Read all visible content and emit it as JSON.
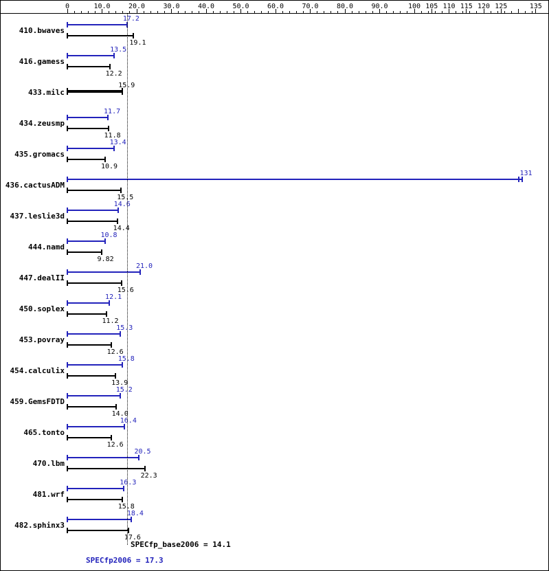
{
  "chart_data": {
    "type": "bar",
    "orientation": "horizontal",
    "colors": {
      "peak": "#2222bb",
      "base": "#000000",
      "reference_line": "#000000"
    },
    "x_axis": {
      "min": 0,
      "max": 135.3,
      "minor_tick_step": 2,
      "unlabeled_major_ticks": [
        130
      ],
      "tick_labels": [
        {
          "value": 0,
          "label": "0"
        },
        {
          "value": 10,
          "label": "10.0"
        },
        {
          "value": 20,
          "label": "20.0"
        },
        {
          "value": 30,
          "label": "30.0"
        },
        {
          "value": 40,
          "label": "40.0"
        },
        {
          "value": 50,
          "label": "50.0"
        },
        {
          "value": 60,
          "label": "60.0"
        },
        {
          "value": 70,
          "label": "70.0"
        },
        {
          "value": 80,
          "label": "80.0"
        },
        {
          "value": 90,
          "label": "90.0"
        },
        {
          "value": 100,
          "label": "100"
        },
        {
          "value": 105,
          "label": "105"
        },
        {
          "value": 110,
          "label": "110"
        },
        {
          "value": 115,
          "label": "115"
        },
        {
          "value": 120,
          "label": "120"
        },
        {
          "value": 125,
          "label": "125"
        },
        {
          "value": 135,
          "label": "135"
        }
      ]
    },
    "series": [
      {
        "name": "peak",
        "color": "#2222bb"
      },
      {
        "name": "base",
        "color": "#000000"
      }
    ],
    "benchmarks": [
      {
        "name": "410.bwaves",
        "peak": 17.2,
        "peak_label": "17.2",
        "base": 19.1,
        "base_label": "19.1"
      },
      {
        "name": "416.gamess",
        "peak": 13.5,
        "peak_label": "13.5",
        "base": 12.2,
        "base_label": "12.2"
      },
      {
        "name": "433.milc",
        "peak": null,
        "base": 15.9,
        "base_label": "15.9"
      },
      {
        "name": "434.zeusmp",
        "peak": 11.7,
        "peak_label": "11.7",
        "base": 11.8,
        "base_label": "11.8"
      },
      {
        "name": "435.gromacs",
        "peak": 13.4,
        "peak_label": "13.4",
        "base": 10.9,
        "base_label": "10.9"
      },
      {
        "name": "436.cactusADM",
        "peak": 131,
        "peak_label": "131",
        "base": 15.5,
        "base_label": "15.5",
        "end_marker": "double"
      },
      {
        "name": "437.leslie3d",
        "peak": 14.6,
        "peak_label": "14.6",
        "base": 14.4,
        "base_label": "14.4"
      },
      {
        "name": "444.namd",
        "peak": 10.8,
        "peak_label": "10.8",
        "base": 9.82,
        "base_label": "9.82"
      },
      {
        "name": "447.dealII",
        "peak": 21.0,
        "peak_label": "21.0",
        "base": 15.6,
        "base_label": "15.6"
      },
      {
        "name": "450.soplex",
        "peak": 12.1,
        "peak_label": "12.1",
        "base": 11.2,
        "base_label": "11.2"
      },
      {
        "name": "453.povray",
        "peak": 15.3,
        "peak_label": "15.3",
        "base": 12.6,
        "base_label": "12.6"
      },
      {
        "name": "454.calculix",
        "peak": 15.8,
        "peak_label": "15.8",
        "base": 13.9,
        "base_label": "13.9"
      },
      {
        "name": "459.GemsFDTD",
        "peak": 15.2,
        "peak_label": "15.2",
        "base": 14.0,
        "base_label": "14.0"
      },
      {
        "name": "465.tonto",
        "peak": 16.4,
        "peak_label": "16.4",
        "base": 12.6,
        "base_label": "12.6"
      },
      {
        "name": "470.lbm",
        "peak": 20.5,
        "peak_label": "20.5",
        "base": 22.3,
        "base_label": "22.3"
      },
      {
        "name": "481.wrf",
        "peak": 16.3,
        "peak_label": "16.3",
        "base": 15.8,
        "base_label": "15.8"
      },
      {
        "name": "482.sphinx3",
        "peak": 18.4,
        "peak_label": "18.4",
        "base": 17.6,
        "base_label": "17.6"
      }
    ],
    "reference_line_value": 17.3,
    "footer": {
      "base_label": "SPECfp_base2006 = 14.1",
      "peak_label": "SPECfp2006 = 17.3"
    }
  }
}
